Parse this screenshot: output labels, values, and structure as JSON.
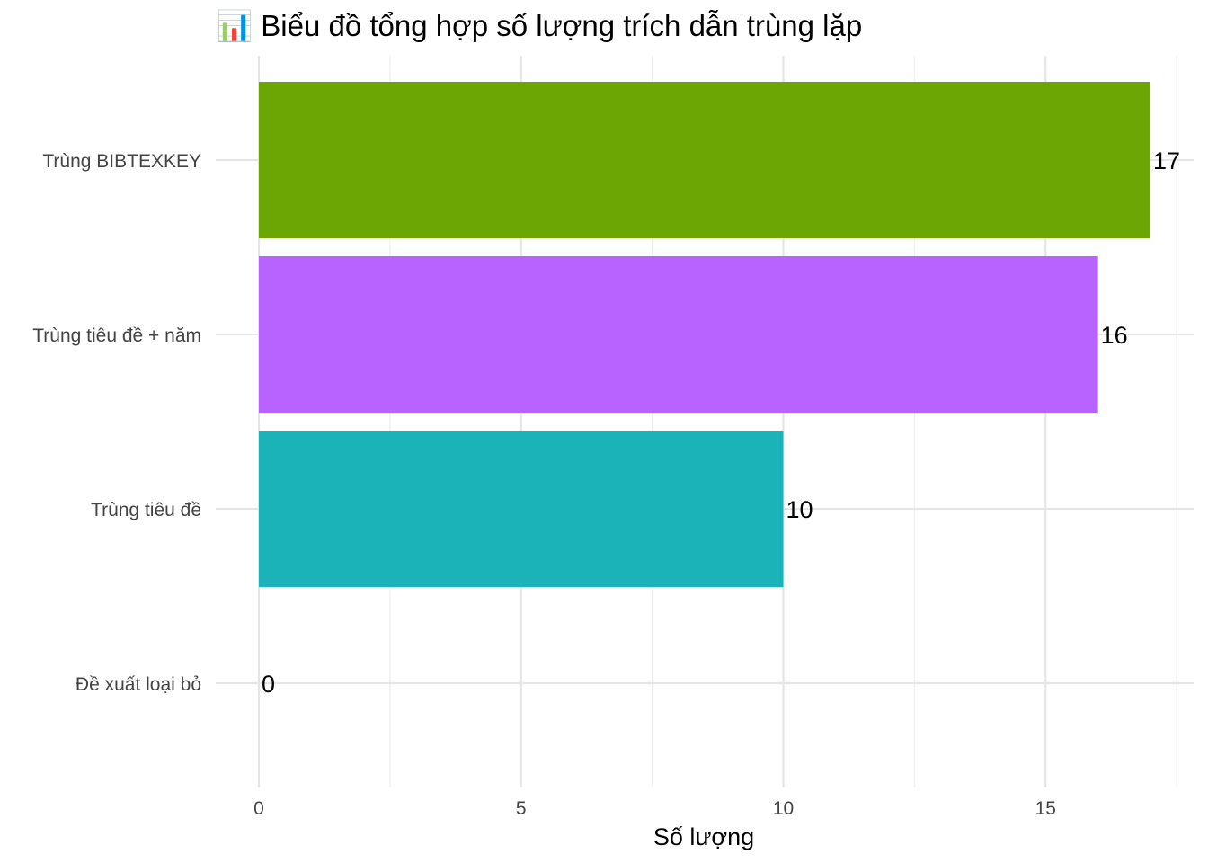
{
  "chart_data": {
    "type": "bar",
    "orientation": "horizontal",
    "title": "📊 Biểu đồ tổng hợp số lượng trích dẫn trùng lặp",
    "title_icon": "chart-icon",
    "xlabel": "Số lượng",
    "ylabel": "",
    "categories": [
      "Trùng BIBTEXKEY",
      "Trùng tiêu đề + năm",
      "Trùng tiêu đề",
      "Đề xuất loại bỏ"
    ],
    "values": [
      17,
      16,
      10,
      0
    ],
    "value_labels": [
      "17",
      "16",
      "10",
      "0"
    ],
    "colors": [
      "#6BA604",
      "#B862FF",
      "#1AB4B8",
      "#F8766D"
    ],
    "xlim": [
      0,
      17.5
    ],
    "xticks": [
      0,
      5,
      10,
      15
    ],
    "xtick_labels": [
      "0",
      "5",
      "10",
      "15"
    ],
    "grid": true,
    "legend": "none"
  }
}
